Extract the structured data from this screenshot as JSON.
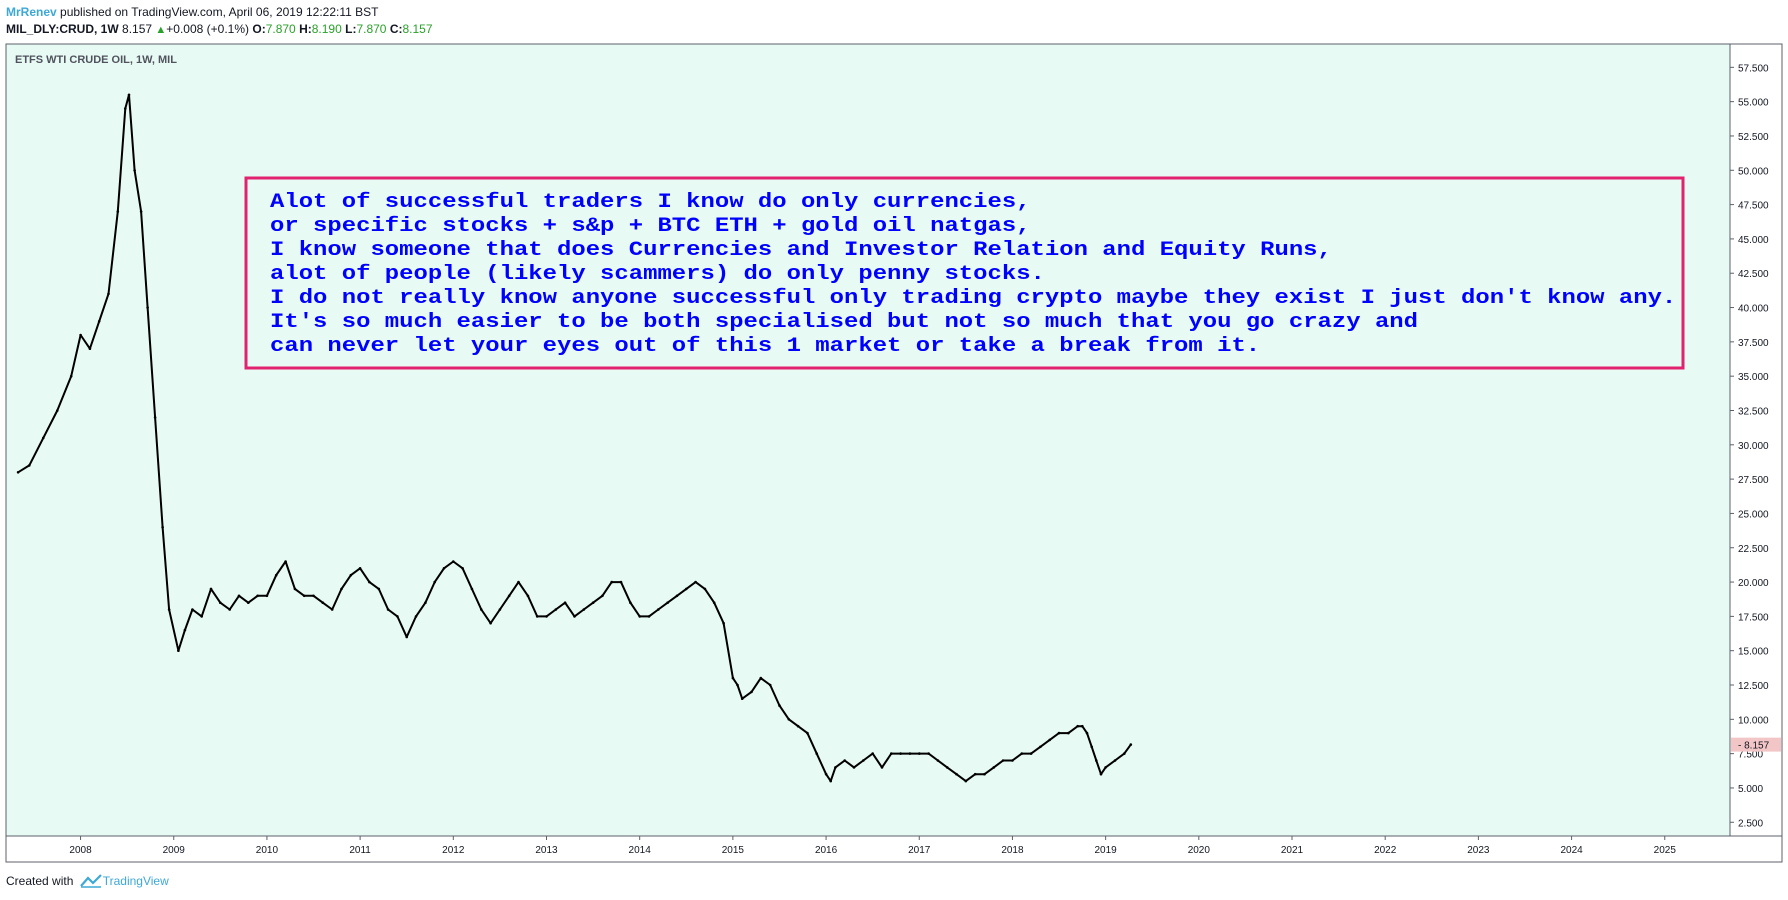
{
  "header": {
    "user": "MrRenev",
    "published": "published on TradingView.com, April 06, 2019 12:22:11 BST",
    "symbol": "MIL_DLY:CRUD, 1W",
    "last": "8.157",
    "change": "+0.008 (+0.1%)",
    "o_label": "O:",
    "o_val": "7.870",
    "h_label": "H:",
    "h_val": "8.190",
    "l_label": "L:",
    "l_val": "7.870",
    "c_label": "C:",
    "c_val": "8.157"
  },
  "footer": {
    "created": "Created with",
    "brand": "TradingView",
    "logo_icon": "tradingview-logo-icon"
  },
  "colors": {
    "background": "#e7faf3",
    "candle": "#000000",
    "annotation_border": "#e0226f",
    "annotation_text": "#0000ff",
    "price_tag": "#f2c6c6"
  },
  "annotation": {
    "lines": [
      "Alot of successful traders I know do only currencies,",
      "or specific stocks + s&p + BTC ETH + gold oil natgas,",
      "I know someone that does Currencies and Investor Relation and Equity Runs,",
      "alot of people (likely scammers) do only penny stocks.",
      "I do not really know anyone successful only trading crypto maybe they exist I just don't know any.",
      "It's so much easier to be both specialised but not so much that you go crazy and",
      "can never let your eyes out of this 1 market or take a break from it."
    ]
  },
  "chart_data": {
    "type": "line",
    "title": "ETFS WTI CRUDE OIL, 1W, MIL",
    "xlabel": "",
    "ylabel": "",
    "x_ticks": [
      "2008",
      "2009",
      "2010",
      "2011",
      "2012",
      "2013",
      "2014",
      "2015",
      "2016",
      "2017",
      "2018",
      "2019",
      "2020",
      "2021",
      "2022",
      "2023",
      "2024",
      "2025"
    ],
    "y_ticks": [
      "2.500",
      "5.000",
      "7.500",
      "10.000",
      "12.500",
      "15.000",
      "17.500",
      "20.000",
      "22.500",
      "25.000",
      "27.500",
      "30.000",
      "32.500",
      "35.000",
      "37.500",
      "40.000",
      "42.500",
      "45.000",
      "47.500",
      "50.000",
      "52.500",
      "55.000",
      "57.500"
    ],
    "xlim": [
      2007.2,
      2025.7
    ],
    "ylim": [
      1.5,
      59.2
    ],
    "last_price_label": "8.157",
    "grid": false,
    "series": [
      {
        "x": [
          2007.33,
          2007.45,
          2007.6,
          2007.75,
          2007.9,
          2008.0,
          2008.1,
          2008.2,
          2008.3,
          2008.4,
          2008.48,
          2008.52,
          2008.58,
          2008.65,
          2008.72,
          2008.8,
          2008.88,
          2008.95,
          2009.05,
          2009.12,
          2009.2,
          2009.3,
          2009.4,
          2009.5,
          2009.6,
          2009.7,
          2009.8,
          2009.9,
          2010.0,
          2010.1,
          2010.2,
          2010.3,
          2010.4,
          2010.5,
          2010.6,
          2010.7,
          2010.8,
          2010.9,
          2011.0,
          2011.1,
          2011.2,
          2011.3,
          2011.4,
          2011.5,
          2011.6,
          2011.7,
          2011.8,
          2011.9,
          2012.0,
          2012.1,
          2012.2,
          2012.3,
          2012.4,
          2012.5,
          2012.6,
          2012.7,
          2012.8,
          2012.9,
          2013.0,
          2013.1,
          2013.2,
          2013.3,
          2013.4,
          2013.5,
          2013.6,
          2013.7,
          2013.8,
          2013.9,
          2014.0,
          2014.1,
          2014.2,
          2014.3,
          2014.4,
          2014.5,
          2014.6,
          2014.7,
          2014.8,
          2014.9,
          2015.0,
          2015.05,
          2015.1,
          2015.2,
          2015.3,
          2015.4,
          2015.5,
          2015.6,
          2015.7,
          2015.8,
          2015.9,
          2016.0,
          2016.05,
          2016.1,
          2016.2,
          2016.3,
          2016.4,
          2016.5,
          2016.6,
          2016.7,
          2016.8,
          2016.9,
          2017.0,
          2017.1,
          2017.2,
          2017.3,
          2017.4,
          2017.5,
          2017.6,
          2017.7,
          2017.8,
          2017.9,
          2018.0,
          2018.1,
          2018.2,
          2018.3,
          2018.4,
          2018.5,
          2018.6,
          2018.7,
          2018.75,
          2018.8,
          2018.85,
          2018.9,
          2018.95,
          2019.0,
          2019.1,
          2019.2,
          2019.27
        ],
        "values": [
          28.0,
          28.5,
          30.5,
          32.5,
          35.0,
          38.0,
          37.0,
          39.0,
          41.0,
          47.0,
          54.5,
          55.5,
          50.0,
          47.0,
          40.0,
          32.0,
          24.0,
          18.0,
          15.0,
          16.5,
          18.0,
          17.5,
          19.5,
          18.5,
          18.0,
          19.0,
          18.5,
          19.0,
          19.0,
          20.5,
          21.5,
          19.5,
          19.0,
          19.0,
          18.5,
          18.0,
          19.5,
          20.5,
          21.0,
          20.0,
          19.5,
          18.0,
          17.5,
          16.0,
          17.5,
          18.5,
          20.0,
          21.0,
          21.5,
          21.0,
          19.5,
          18.0,
          17.0,
          18.0,
          19.0,
          20.0,
          19.0,
          17.5,
          17.5,
          18.0,
          18.5,
          17.5,
          18.0,
          18.5,
          19.0,
          20.0,
          20.0,
          18.5,
          17.5,
          17.5,
          18.0,
          18.5,
          19.0,
          19.5,
          20.0,
          19.5,
          18.5,
          17.0,
          13.0,
          12.5,
          11.5,
          12.0,
          13.0,
          12.5,
          11.0,
          10.0,
          9.5,
          9.0,
          7.5,
          6.0,
          5.5,
          6.5,
          7.0,
          6.5,
          7.0,
          7.5,
          6.5,
          7.5,
          7.5,
          7.5,
          7.5,
          7.5,
          7.0,
          6.5,
          6.0,
          5.5,
          6.0,
          6.0,
          6.5,
          7.0,
          7.0,
          7.5,
          7.5,
          8.0,
          8.5,
          9.0,
          9.0,
          9.5,
          9.5,
          9.0,
          8.0,
          7.0,
          6.0,
          6.5,
          7.0,
          7.5,
          8.157
        ]
      }
    ]
  }
}
